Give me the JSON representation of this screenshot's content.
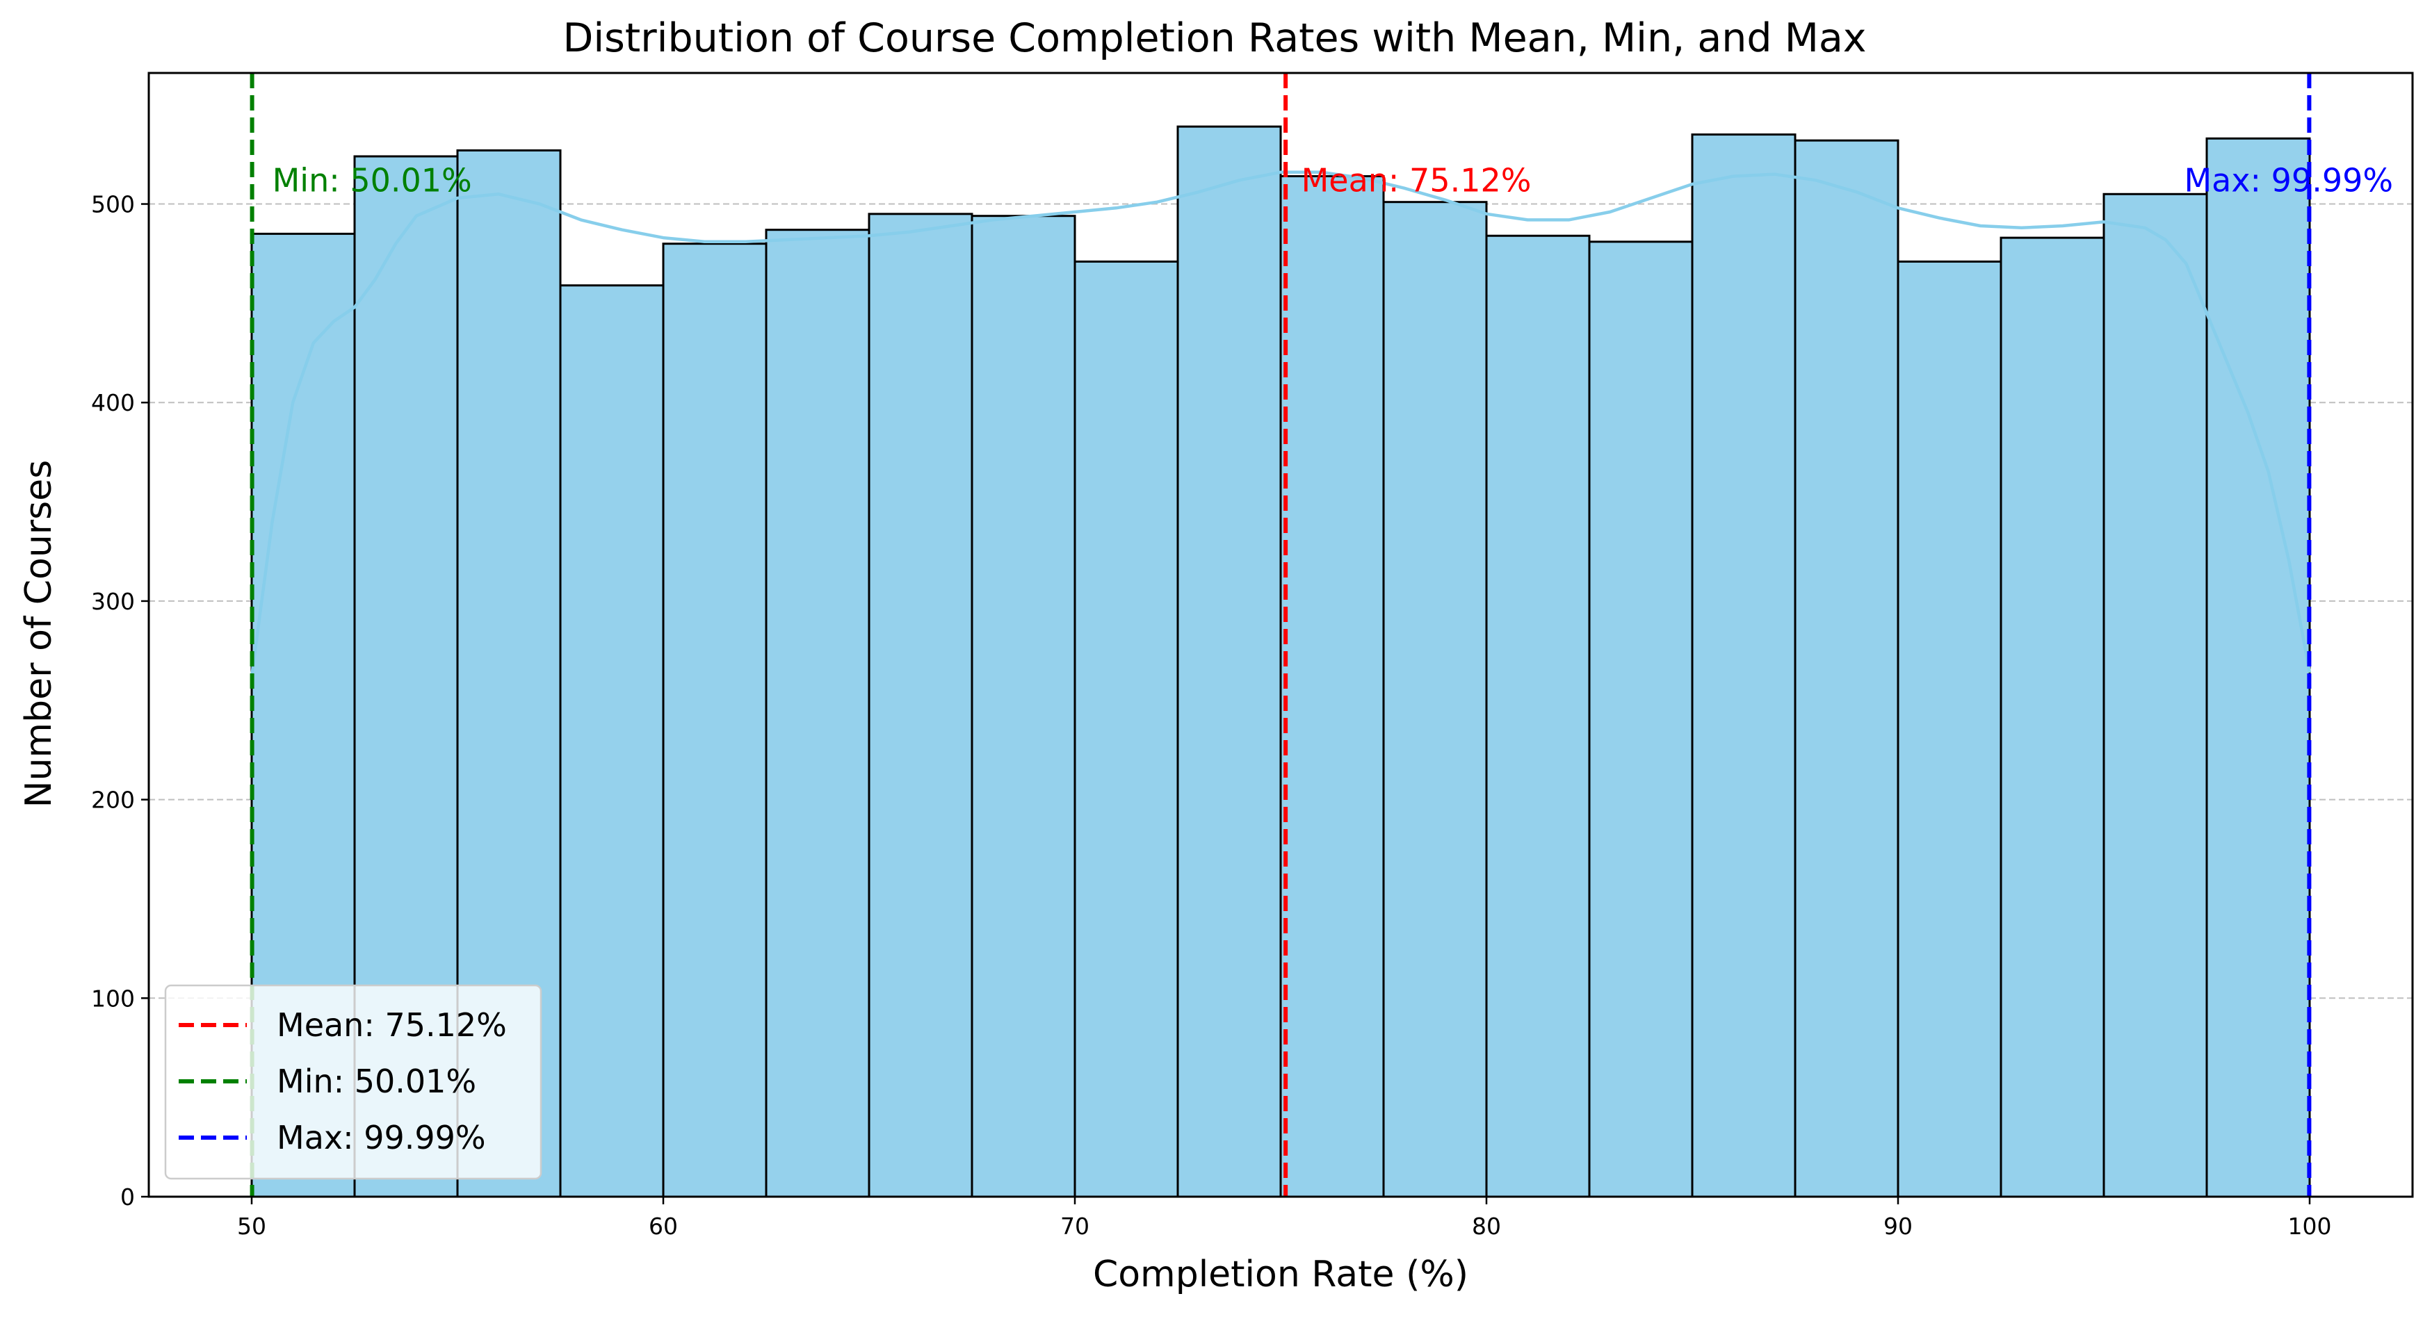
{
  "chart_data": {
    "type": "bar",
    "title": "Distribution of Course Completion Rates with Mean, Min, and Max",
    "xlabel": "Completion Rate (%)",
    "ylabel": "Number of Courses",
    "xlim": [
      47.5,
      102.5
    ],
    "ylim": [
      0,
      566
    ],
    "xticks": [
      50,
      60,
      70,
      80,
      90,
      100
    ],
    "yticks": [
      0,
      100,
      200,
      300,
      400,
      500
    ],
    "grid": "y-axis dashed",
    "bins": {
      "start": 50,
      "width": 2.5,
      "counts": [
        485,
        524,
        527,
        459,
        480,
        487,
        495,
        494,
        471,
        539,
        514,
        501,
        484,
        481,
        535,
        532,
        471,
        483,
        505,
        533
      ]
    },
    "kde": {
      "x": [
        50,
        50.5,
        51,
        51.5,
        52,
        52.5,
        53,
        53.5,
        54,
        55,
        56,
        57,
        58,
        59,
        60,
        61,
        62,
        63,
        64,
        65,
        66,
        67,
        68,
        69,
        70,
        71,
        72,
        73,
        74,
        75,
        76,
        77,
        78,
        79,
        80,
        81,
        82,
        83,
        84,
        85,
        86,
        87,
        88,
        89,
        90,
        91,
        92,
        93,
        94,
        95,
        96,
        96.5,
        97,
        97.5,
        98,
        98.5,
        99,
        99.5,
        100
      ],
      "y": [
        262,
        340,
        400,
        430,
        441,
        448,
        462,
        480,
        494,
        503,
        505,
        500,
        492,
        487,
        483,
        481,
        481,
        482,
        483,
        484,
        486,
        489,
        492,
        494,
        496,
        498,
        501,
        506,
        512,
        516,
        516,
        513,
        508,
        502,
        495,
        492,
        492,
        496,
        503,
        510,
        514,
        515,
        512,
        506,
        498,
        493,
        489,
        488,
        489,
        491,
        488,
        482,
        470,
        445,
        420,
        395,
        365,
        320,
        264
      ]
    },
    "lines": [
      {
        "label": "Mean: 75.12%",
        "x": 75.12,
        "color": "#ff0000"
      },
      {
        "label": "Min: 50.01%",
        "x": 50.01,
        "color": "#008000"
      },
      {
        "label": "Max: 99.99%",
        "x": 99.99,
        "color": "#0000ff"
      }
    ],
    "annotations": [
      {
        "text": "Min: 50.01%",
        "x": 50.5,
        "y": 512,
        "color": "#008000"
      },
      {
        "text": "Mean: 75.12%",
        "x": 75.5,
        "y": 512,
        "color": "#ff0000"
      },
      {
        "text": "Max: 99.99%",
        "x": 96.95,
        "y": 512,
        "color": "#0000ff"
      }
    ],
    "legend": {
      "position": "bottom-left",
      "entries": [
        "Mean: 75.12%",
        "Min: 50.01%",
        "Max: 99.99%"
      ]
    },
    "colors": {
      "bar_fill": "#95d1ec",
      "bar_edge": "#000000",
      "kde": "#87ceeb",
      "grid": "#bfbfbf"
    }
  }
}
